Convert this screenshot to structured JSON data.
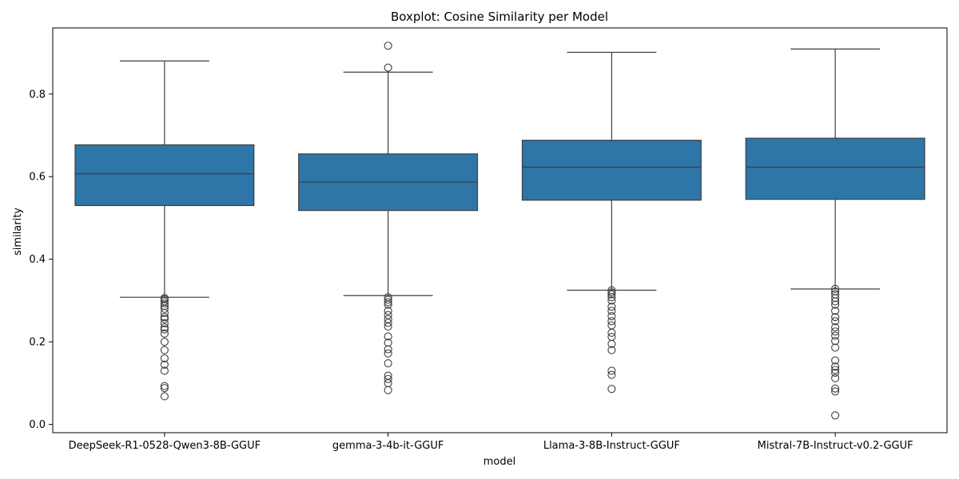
{
  "chart_data": {
    "type": "box",
    "title": "Boxplot: Cosine Similarity per Model",
    "xlabel": "model",
    "ylabel": "similarity",
    "ylim": [
      -0.02,
      0.96
    ],
    "yticks": [
      0.0,
      0.2,
      0.4,
      0.6,
      0.8
    ],
    "ytick_labels": [
      "0.0",
      "0.2",
      "0.4",
      "0.6",
      "0.8"
    ],
    "grid": false,
    "box_color": "#2e75a8",
    "line_color": "#3f3f3f",
    "categories": [
      "DeepSeek-R1-0528-Qwen3-8B-GGUF",
      "gemma-3-4b-it-GGUF",
      "Llama-3-8B-Instruct-GGUF",
      "Mistral-7B-Instruct-v0.2-GGUF"
    ],
    "boxes": [
      {
        "whisker_low": 0.308,
        "q1": 0.53,
        "median": 0.607,
        "q3": 0.677,
        "whisker_high": 0.88,
        "outliers": [
          0.068,
          0.088,
          0.093,
          0.13,
          0.145,
          0.16,
          0.18,
          0.2,
          0.22,
          0.23,
          0.235,
          0.245,
          0.255,
          0.26,
          0.27,
          0.28,
          0.287,
          0.293,
          0.298,
          0.303,
          0.306
        ]
      },
      {
        "whisker_low": 0.312,
        "q1": 0.518,
        "median": 0.587,
        "q3": 0.655,
        "whisker_high": 0.853,
        "outliers": [
          0.083,
          0.1,
          0.11,
          0.118,
          0.148,
          0.172,
          0.182,
          0.198,
          0.213,
          0.237,
          0.246,
          0.255,
          0.265,
          0.275,
          0.29,
          0.296,
          0.302,
          0.308,
          0.864,
          0.917
        ]
      },
      {
        "whisker_low": 0.325,
        "q1": 0.543,
        "median": 0.623,
        "q3": 0.688,
        "whisker_high": 0.901,
        "outliers": [
          0.086,
          0.12,
          0.13,
          0.18,
          0.195,
          0.212,
          0.222,
          0.24,
          0.25,
          0.262,
          0.275,
          0.285,
          0.3,
          0.308,
          0.315,
          0.32,
          0.325
        ]
      },
      {
        "whisker_low": 0.328,
        "q1": 0.545,
        "median": 0.623,
        "q3": 0.693,
        "whisker_high": 0.909,
        "outliers": [
          0.022,
          0.08,
          0.087,
          0.112,
          0.125,
          0.132,
          0.14,
          0.155,
          0.186,
          0.202,
          0.215,
          0.225,
          0.235,
          0.25,
          0.26,
          0.275,
          0.29,
          0.298,
          0.306,
          0.315,
          0.322,
          0.328
        ]
      }
    ]
  }
}
